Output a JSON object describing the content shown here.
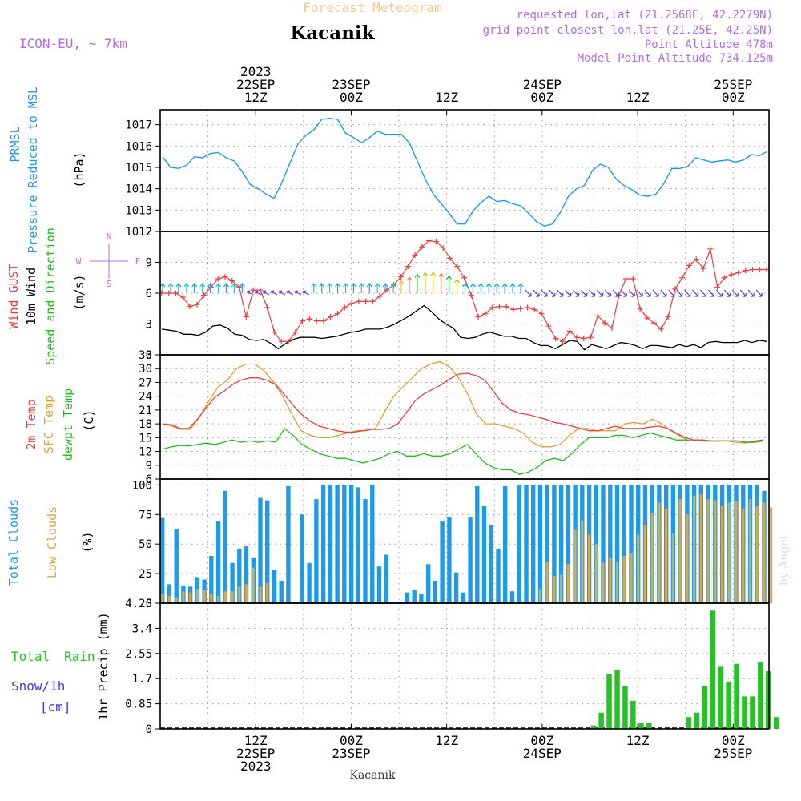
{
  "header": {
    "top_title": "Forecast Meteogram",
    "location": "Kacanik",
    "model": "ICON-EU, ~ 7km",
    "requested": "requested lon,lat (21.2568E, 42.2279N)",
    "grid_point": "grid point closest lon,lat (21.25E, 42.25N)",
    "point_altitude": "Point Altitude 478m",
    "model_altitude": "Model Point Altitude 734.125m",
    "footer_location": "Kacanik",
    "watermark": "by Angel"
  },
  "colors": {
    "pressure": "#1e9be8",
    "gust": "#e84040",
    "wind": "#000000",
    "temp": "#e84040",
    "sfc": "#e0a030",
    "dewpt": "#22bb22",
    "total_clouds": "#1e9be8",
    "low_clouds": "#d4aa50",
    "rain": "#22c322",
    "snow": "#4040e0",
    "purple": "#b070e0"
  },
  "time_axis": {
    "top_labels": [
      {
        "t": 12,
        "lines": [
          "2023",
          "22SEP",
          "12Z"
        ]
      },
      {
        "t": 24,
        "lines": [
          "23SEP",
          "00Z"
        ]
      },
      {
        "t": 36,
        "lines": [
          "12Z"
        ]
      },
      {
        "t": 48,
        "lines": [
          "24SEP",
          "00Z"
        ]
      },
      {
        "t": 60,
        "lines": [
          "12Z"
        ]
      },
      {
        "t": 72,
        "lines": [
          "25SEP",
          "00Z"
        ]
      }
    ],
    "bottom_labels": [
      {
        "t": 12,
        "lines": [
          "12Z",
          "22SEP",
          "2023"
        ]
      },
      {
        "t": 24,
        "lines": [
          "00Z",
          "23SEP"
        ]
      },
      {
        "t": 36,
        "lines": [
          "12Z"
        ]
      },
      {
        "t": 48,
        "lines": [
          "00Z",
          "24SEP"
        ]
      },
      {
        "t": 60,
        "lines": [
          "12Z"
        ]
      },
      {
        "t": 72,
        "lines": [
          "00Z",
          "25SEP"
        ]
      }
    ]
  },
  "panel_labels": {
    "pressure": [
      "PRMSL",
      "Pressure Reduced to MSL",
      "(hPa)"
    ],
    "wind": [
      "Wind GUST",
      "10m Wind",
      "Speed and Direction",
      "(m/s)"
    ],
    "compass": [
      "N",
      "E",
      "S",
      "W"
    ],
    "temp": [
      "2m Temp",
      "SFC Temp",
      "dewpt Temp",
      "(C)"
    ],
    "clouds": [
      "Total Clouds",
      "Low Clouds",
      "(%)"
    ],
    "precip": [
      "Total",
      "Rain",
      "Snow/1h",
      "[cm]",
      "1hr Precip (mm)"
    ]
  },
  "chart_data": [
    {
      "type": "line",
      "title": "PRMSL Pressure Reduced to MSL",
      "ylabel": "(hPa)",
      "ylim": [
        1012,
        1017.7
      ],
      "yticks": [
        "1012",
        "1013",
        "1014",
        "1015",
        "1016",
        "1017"
      ],
      "x_hours": [
        0,
        1,
        2,
        3,
        4,
        5,
        6,
        7,
        8,
        9,
        10,
        11,
        12,
        13,
        14,
        15,
        16,
        17,
        18,
        19,
        20,
        21,
        22,
        23,
        24,
        25,
        26,
        27,
        28,
        29,
        30,
        31,
        32,
        33,
        34,
        35,
        36,
        37,
        38,
        39,
        40,
        41,
        42,
        43,
        44,
        45,
        46,
        47,
        48,
        49,
        50,
        51,
        52,
        53,
        54,
        55,
        56,
        57,
        58,
        59,
        60,
        61,
        62,
        63,
        64,
        65,
        66,
        67,
        68,
        69,
        70,
        71,
        72,
        73,
        74,
        75,
        76
      ],
      "series": [
        {
          "name": "PRMSL",
          "values": [
            1015.5,
            1015.0,
            1014.95,
            1015.1,
            1015.5,
            1015.45,
            1015.65,
            1015.7,
            1015.45,
            1015.3,
            1014.8,
            1014.2,
            1014.0,
            1013.75,
            1013.55,
            1014.3,
            1015.2,
            1016.1,
            1016.5,
            1016.75,
            1017.25,
            1017.3,
            1017.25,
            1016.6,
            1016.4,
            1016.15,
            1016.4,
            1016.7,
            1016.55,
            1016.55,
            1016.55,
            1016.15,
            1015.3,
            1014.45,
            1013.75,
            1013.3,
            1012.85,
            1012.35,
            1012.35,
            1012.95,
            1013.35,
            1013.65,
            1013.4,
            1013.45,
            1013.3,
            1013.2,
            1012.85,
            1012.45,
            1012.25,
            1012.35,
            1012.9,
            1013.65,
            1014.0,
            1014.15,
            1014.85,
            1015.15,
            1015.0,
            1014.45,
            1014.15,
            1013.95,
            1013.7,
            1013.65,
            1013.75,
            1014.25,
            1014.95,
            1014.95,
            1015.05,
            1015.45,
            1015.35,
            1015.25,
            1015.3,
            1015.35,
            1015.25,
            1015.35,
            1015.6,
            1015.55,
            1015.75
          ]
        }
      ]
    },
    {
      "type": "line",
      "title": "Wind GUST / 10m Wind Speed and Direction",
      "ylabel": "(m/s)",
      "ylim": [
        0,
        12
      ],
      "yticks": [
        "0",
        "3",
        "6",
        "9",
        "12"
      ],
      "series": [
        {
          "name": "Wind GUST",
          "values": [
            6.0,
            6.0,
            6.0,
            5.6,
            4.7,
            4.9,
            5.8,
            6.6,
            7.4,
            7.6,
            7.2,
            6.6,
            3.7,
            6.3,
            6.3,
            4.6,
            2.2,
            1.3,
            1.3,
            2.2,
            3.3,
            3.5,
            3.3,
            3.3,
            3.7,
            4.0,
            4.6,
            5.0,
            5.2,
            5.2,
            5.2,
            5.7,
            6.3,
            6.8,
            7.6,
            8.6,
            9.7,
            10.5,
            11.1,
            11.0,
            10.4,
            9.4,
            8.6,
            7.5,
            5.8,
            3.7,
            4.0,
            4.6,
            4.7,
            4.7,
            4.4,
            4.5,
            4.6,
            4.4,
            4.0,
            2.8,
            1.6,
            1.3,
            2.3,
            1.7,
            1.6,
            1.7,
            3.8,
            3.1,
            2.6,
            5.8,
            7.4,
            7.4,
            4.5,
            3.6,
            3.1,
            2.5,
            3.7,
            6.4,
            7.5,
            8.7,
            9.3,
            8.4,
            10.3,
            6.6,
            7.5,
            7.8,
            8.0,
            8.2,
            8.3,
            8.3,
            8.3
          ]
        },
        {
          "name": "10m Wind",
          "values": [
            2.5,
            2.4,
            2.3,
            2.0,
            2.0,
            1.9,
            2.2,
            2.8,
            2.9,
            2.6,
            2.0,
            1.9,
            1.5,
            1.4,
            1.5,
            1.1,
            0.6,
            1.1,
            1.5,
            1.7,
            1.7,
            1.7,
            1.6,
            1.7,
            1.8,
            2.0,
            2.2,
            2.3,
            2.5,
            2.5,
            2.5,
            2.7,
            3.0,
            3.4,
            3.8,
            4.3,
            4.8,
            4.2,
            3.5,
            3.0,
            2.6,
            1.7,
            1.6,
            1.7,
            2.0,
            2.2,
            2.0,
            1.8,
            1.8,
            1.6,
            1.6,
            1.2,
            0.9,
            0.9,
            0.6,
            1.0,
            1.4,
            1.3,
            0.5,
            1.0,
            0.8,
            0.6,
            0.9,
            1.2,
            1.1,
            0.9,
            0.6,
            0.9,
            0.9,
            0.8,
            0.7,
            1.0,
            0.8,
            1.0,
            0.7,
            1.2,
            1.3,
            1.2,
            1.2,
            1.2,
            1.4,
            1.2,
            1.4,
            1.3
          ]
        }
      ],
      "direction_bands": [
        {
          "from_hour": 0,
          "to_hour": 11,
          "direction": "N",
          "colors": [
            "#20a0e8",
            "#20c8c8"
          ]
        },
        {
          "from_hour": 11,
          "to_hour": 19,
          "direction": "NW-W",
          "colors": [
            "#6040d8"
          ]
        },
        {
          "from_hour": 19,
          "to_hour": 30,
          "direction": "N",
          "colors": [
            "#20a0e8",
            "#20c8c8"
          ]
        },
        {
          "from_hour": 30,
          "to_hour": 38,
          "direction": "N",
          "colors": [
            "#22bb22",
            "#a0d020",
            "#e8c020",
            "#e88040"
          ]
        },
        {
          "from_hour": 38,
          "to_hour": 46,
          "direction": "N",
          "colors": [
            "#20a0e8"
          ]
        },
        {
          "from_hour": 46,
          "to_hour": 77,
          "direction": "SW-W",
          "colors": [
            "#6040d8",
            "#4040e0"
          ]
        }
      ]
    },
    {
      "type": "line",
      "title": "2m Temp / SFC Temp / dewpt Temp",
      "ylabel": "(C)",
      "ylim": [
        6,
        33
      ],
      "yticks": [
        "6",
        "9",
        "12",
        "15",
        "18",
        "21",
        "24",
        "27",
        "30",
        "33"
      ],
      "series": [
        {
          "name": "2m Temp",
          "values": [
            18.0,
            17.8,
            17.0,
            17.0,
            19.0,
            21.5,
            23.8,
            25.0,
            26.5,
            27.5,
            28.0,
            28.0,
            27.5,
            26.5,
            24.3,
            22.0,
            20.0,
            18.5,
            17.5,
            17.0,
            16.5,
            16.2,
            16.2,
            16.5,
            16.8,
            16.8,
            17.0,
            18.0,
            20.5,
            23.0,
            24.5,
            25.5,
            26.5,
            27.8,
            28.8,
            29.0,
            28.5,
            27.5,
            25.0,
            22.5,
            21.0,
            20.3,
            20.0,
            19.5,
            19.0,
            18.3,
            18.0,
            17.5,
            17.0,
            16.5,
            16.5,
            17.0,
            17.5,
            17.0,
            17.0,
            17.0,
            17.3,
            17.5,
            17.0,
            16.0,
            15.0,
            14.5,
            14.5,
            14.3,
            14.3,
            14.3,
            14.3,
            14.0,
            14.2,
            14.5
          ]
        },
        {
          "name": "SFC Temp",
          "values": [
            18.0,
            17.5,
            16.8,
            16.8,
            19.5,
            23.0,
            26.0,
            27.5,
            30.0,
            31.0,
            31.0,
            29.5,
            27.0,
            24.0,
            20.0,
            16.5,
            15.5,
            15.0,
            15.0,
            15.5,
            16.0,
            16.5,
            16.5,
            17.0,
            20.5,
            24.0,
            26.0,
            28.0,
            30.0,
            31.0,
            31.5,
            30.5,
            28.0,
            24.5,
            20.0,
            18.0,
            18.0,
            17.5,
            17.0,
            16.0,
            14.0,
            13.0,
            13.0,
            13.5,
            15.5,
            17.0,
            17.0,
            16.5,
            16.5,
            16.5,
            18.0,
            18.3,
            18.0,
            19.0,
            18.0,
            16.5,
            15.3,
            14.3,
            14.3,
            14.2,
            14.2,
            14.3,
            14.0,
            13.8,
            14.3,
            14.5
          ]
        },
        {
          "name": "dewpt Temp",
          "values": [
            12.5,
            13.0,
            13.3,
            13.2,
            13.5,
            13.8,
            13.5,
            14.0,
            14.5,
            14.0,
            14.3,
            14.0,
            14.3,
            14.0,
            17.0,
            15.5,
            13.5,
            12.5,
            11.5,
            11.0,
            10.5,
            10.5,
            10.0,
            9.5,
            10.0,
            10.5,
            11.5,
            12.0,
            11.0,
            11.0,
            11.5,
            11.0,
            11.0,
            11.5,
            12.5,
            13.5,
            11.5,
            9.5,
            8.5,
            8.0,
            8.0,
            7.0,
            7.5,
            8.5,
            10.0,
            10.5,
            10.0,
            11.5,
            13.5,
            15.0,
            15.0,
            15.0,
            15.5,
            15.5,
            15.0,
            15.5,
            16.0,
            15.5,
            15.0,
            14.5,
            14.5,
            14.3,
            14.3,
            14.3,
            14.3,
            14.3,
            14.3,
            14.0,
            14.0,
            14.3
          ]
        }
      ]
    },
    {
      "type": "bar",
      "title": "Total Clouds / Low Clouds",
      "ylabel": "(%)",
      "ylim": [
        0,
        105
      ],
      "yticks": [
        "0",
        "25",
        "50",
        "75",
        "100"
      ],
      "series": [
        {
          "name": "Total Clouds",
          "values": [
            72,
            16,
            63,
            15,
            14,
            22,
            20,
            40,
            69,
            95,
            34,
            46,
            48,
            38,
            89,
            87,
            28,
            19,
            99,
            1,
            75,
            34,
            88,
            100,
            100,
            100,
            100,
            100,
            98,
            88,
            100,
            31,
            41,
            1,
            1,
            9,
            11,
            8,
            33,
            19,
            69,
            73,
            26,
            9,
            73,
            99,
            82,
            66,
            46,
            99,
            10,
            100,
            100,
            100,
            100,
            100,
            100,
            100,
            100,
            100,
            100,
            100,
            100,
            100,
            100,
            100,
            100,
            100,
            100,
            100,
            100,
            100,
            100,
            100,
            100,
            100,
            100,
            100,
            100,
            100,
            100,
            100,
            100,
            100,
            100,
            100,
            95
          ]
        },
        {
          "name": "Low Clouds",
          "values": [
            8,
            6,
            5,
            10,
            9,
            12,
            11,
            8,
            6,
            10,
            10,
            14,
            16,
            30,
            14,
            17,
            0,
            0,
            0,
            0,
            0,
            0,
            0,
            0,
            0,
            0,
            0,
            0,
            0,
            0,
            0,
            0,
            0,
            0,
            0,
            0,
            0,
            0,
            0,
            0,
            0,
            0,
            0,
            0,
            0,
            0,
            0,
            0,
            0,
            0,
            0,
            0,
            0,
            0,
            12,
            35,
            23,
            24,
            33,
            62,
            70,
            58,
            50,
            34,
            38,
            35,
            40,
            42,
            58,
            66,
            76,
            85,
            80,
            59,
            88,
            75,
            91,
            92,
            88,
            87,
            82,
            85,
            86,
            80,
            88,
            82,
            85,
            81
          ]
        }
      ]
    },
    {
      "type": "bar",
      "title": "1hr Precip (mm)",
      "ylabel": "1hr Precip (mm)",
      "ylim": [
        0,
        4.25
      ],
      "yticks": [
        "0",
        "0.85",
        "1.7",
        "2.55",
        "3.4",
        "4.25"
      ],
      "series": [
        {
          "name": "Total Rain",
          "values": [
            0,
            0,
            0,
            0,
            0,
            0,
            0,
            0,
            0,
            0,
            0,
            0,
            0,
            0,
            0,
            0,
            0,
            0,
            0,
            0,
            0,
            0,
            0,
            0,
            0,
            0,
            0,
            0,
            0,
            0,
            0,
            0,
            0,
            0,
            0,
            0,
            0,
            0,
            0,
            0,
            0,
            0,
            0,
            0,
            0,
            0,
            0,
            0,
            0,
            0,
            0,
            0,
            0,
            0,
            0.12,
            0.55,
            1.85,
            2.0,
            1.45,
            0.95,
            0.2,
            0.2,
            0,
            0,
            0,
            0,
            0.4,
            0.55,
            1.45,
            4.0,
            2.1,
            1.6,
            2.2,
            1.1,
            1.1,
            2.25,
            1.95,
            0.4
          ]
        },
        {
          "name": "Snow/1h",
          "values": []
        }
      ]
    }
  ]
}
